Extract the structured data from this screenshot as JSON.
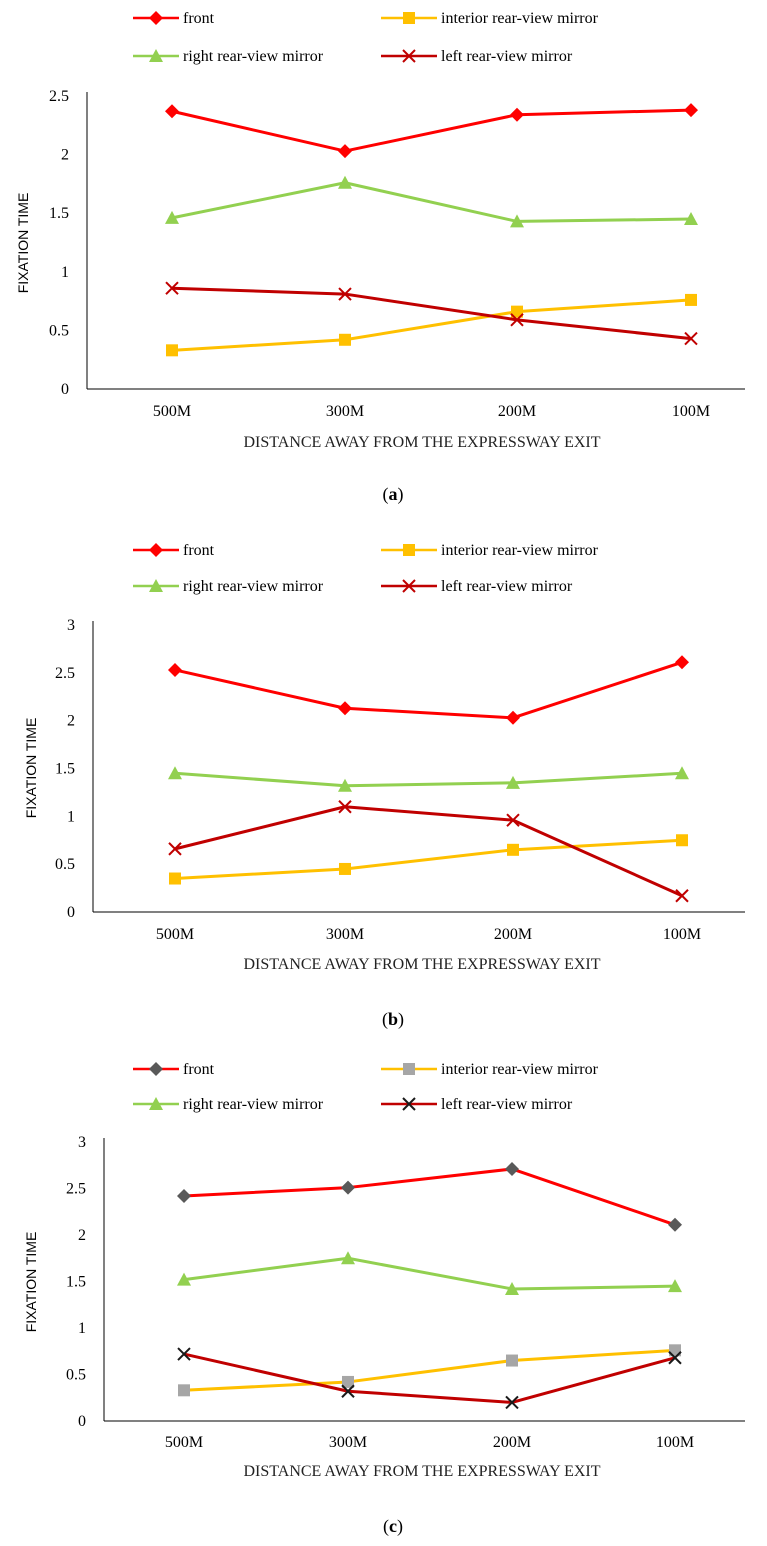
{
  "chart_data": [
    {
      "type": "line",
      "caption_prefix": "(",
      "caption_letter": "a",
      "caption_suffix": ")",
      "categories": [
        "500M",
        "300M",
        "200M",
        "100M"
      ],
      "xlabel": "DISTANCE AWAY FROM THE EXPRESSWAY EXIT",
      "ylabel": "FIXATION TIME",
      "ylim": [
        0,
        2.5
      ],
      "yticks": [
        "0",
        "0.5",
        "1",
        "1.5",
        "2",
        "2.5"
      ],
      "legend_position": "top",
      "series": [
        {
          "name": "front",
          "color": "#ff0000",
          "marker": "diamond",
          "marker_color": "#ff0000",
          "values": [
            2.37,
            2.03,
            2.34,
            2.38
          ]
        },
        {
          "name": "interior rear-view mirror",
          "color": "#ffc000",
          "marker": "square",
          "marker_color": "#ffc000",
          "values": [
            0.33,
            0.42,
            0.66,
            0.76
          ]
        },
        {
          "name": "right rear-view mirror",
          "color": "#92d050",
          "marker": "triangle",
          "marker_color": "#92d050",
          "values": [
            1.46,
            1.76,
            1.43,
            1.45
          ]
        },
        {
          "name": "left rear-view mirror",
          "color": "#c00000",
          "marker": "x",
          "marker_color": "#c00000",
          "values": [
            0.86,
            0.81,
            0.59,
            0.43
          ]
        }
      ]
    },
    {
      "type": "line",
      "caption_prefix": "(",
      "caption_letter": "b",
      "caption_suffix": ")",
      "categories": [
        "500M",
        "300M",
        "200M",
        "100M"
      ],
      "xlabel": "DISTANCE AWAY FROM THE EXPRESSWAY EXIT",
      "ylabel": "FIXATION TIME",
      "ylim": [
        0,
        3
      ],
      "yticks": [
        "0",
        "0.5",
        "1",
        "1.5",
        "2",
        "2.5",
        "3"
      ],
      "legend_position": "top",
      "series": [
        {
          "name": "front",
          "color": "#ff0000",
          "marker": "diamond",
          "marker_color": "#ff0000",
          "values": [
            2.53,
            2.13,
            2.03,
            2.61
          ]
        },
        {
          "name": "interior rear-view mirror",
          "color": "#ffc000",
          "marker": "square",
          "marker_color": "#ffc000",
          "values": [
            0.35,
            0.45,
            0.65,
            0.75
          ]
        },
        {
          "name": "right rear-view mirror",
          "color": "#92d050",
          "marker": "triangle",
          "marker_color": "#92d050",
          "values": [
            1.45,
            1.32,
            1.35,
            1.45
          ]
        },
        {
          "name": "left rear-view mirror",
          "color": "#c00000",
          "marker": "x",
          "marker_color": "#c00000",
          "values": [
            0.66,
            1.1,
            0.96,
            0.17
          ]
        }
      ]
    },
    {
      "type": "line",
      "caption_prefix": "(",
      "caption_letter": "c",
      "caption_suffix": ")",
      "categories": [
        "500M",
        "300M",
        "200M",
        "100M"
      ],
      "xlabel": "DISTANCE AWAY FROM THE EXPRESSWAY EXIT",
      "ylabel": "FIXATION TIME",
      "ylim": [
        0,
        3
      ],
      "yticks": [
        "0",
        "0.5",
        "1",
        "1.5",
        "2",
        "2.5",
        "3"
      ],
      "legend_position": "top",
      "series": [
        {
          "name": "front",
          "color": "#ff0000",
          "marker": "diamond",
          "marker_color": "#595959",
          "values": [
            2.42,
            2.51,
            2.71,
            2.11
          ]
        },
        {
          "name": "interior rear-view mirror",
          "color": "#ffc000",
          "marker": "square",
          "marker_color": "#a6a6a6",
          "values": [
            0.33,
            0.42,
            0.65,
            0.76
          ]
        },
        {
          "name": "right rear-view mirror",
          "color": "#92d050",
          "marker": "triangle",
          "marker_color": "#92d050",
          "values": [
            1.52,
            1.75,
            1.42,
            1.45
          ]
        },
        {
          "name": "left rear-view mirror",
          "color": "#c00000",
          "marker": "x",
          "marker_color": "#1a1a1a",
          "values": [
            0.72,
            0.32,
            0.2,
            0.68
          ]
        }
      ]
    }
  ]
}
